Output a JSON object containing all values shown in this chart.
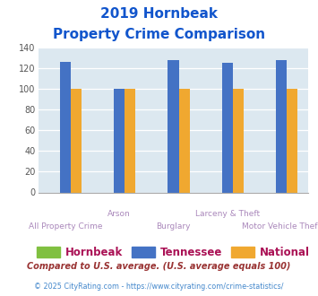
{
  "title_line1": "2019 Hornbeak",
  "title_line2": "Property Crime Comparison",
  "categories": [
    "All Property Crime",
    "Arson",
    "Burglary",
    "Larceny & Theft",
    "Motor Vehicle Theft"
  ],
  "series": {
    "Hornbeak": [
      0,
      0,
      0,
      0,
      0
    ],
    "Tennessee": [
      126,
      100,
      128,
      125,
      128
    ],
    "National": [
      100,
      100,
      100,
      100,
      100
    ]
  },
  "colors": {
    "Hornbeak": "#80c040",
    "Tennessee": "#4472c4",
    "National": "#f0a830"
  },
  "ylim": [
    0,
    140
  ],
  "yticks": [
    0,
    20,
    40,
    60,
    80,
    100,
    120,
    140
  ],
  "plot_bg": "#dce8f0",
  "fig_bg": "#ffffff",
  "title_color": "#1155cc",
  "xlabel_color_bottom": "#aa88bb",
  "xlabel_color_top": "#aa88bb",
  "legend_label_color": "#aa1155",
  "footnote1": "Compared to U.S. average. (U.S. average equals 100)",
  "footnote2": "© 2025 CityRating.com - https://www.cityrating.com/crime-statistics/",
  "footnote1_color": "#993333",
  "footnote2_color": "#4488cc"
}
